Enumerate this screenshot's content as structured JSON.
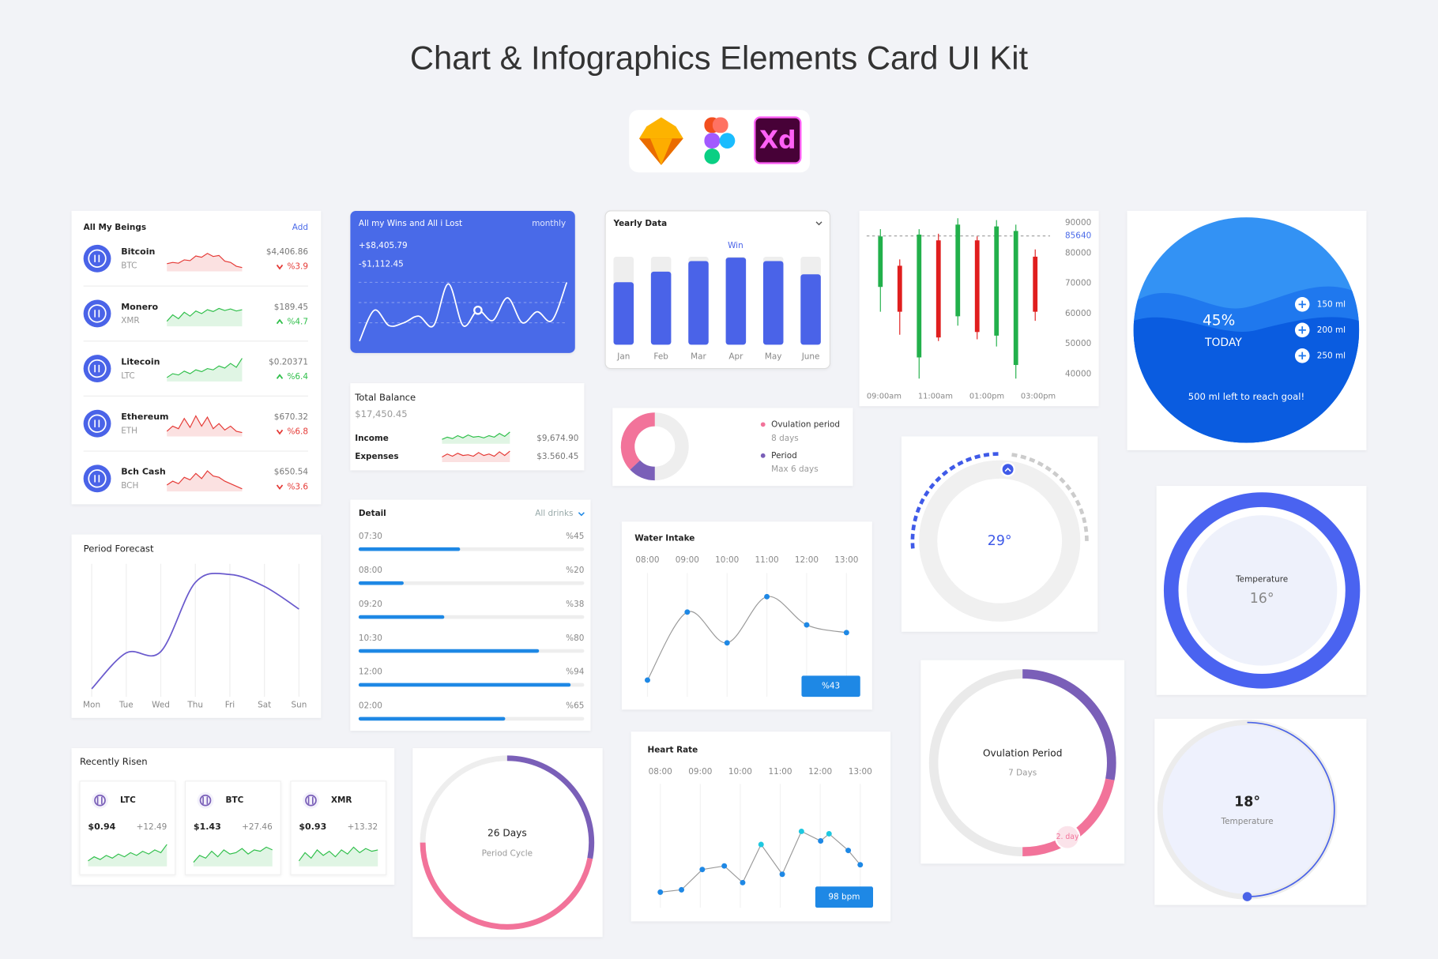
{
  "header": {
    "title": "Chart & Infographics Elements Card UI Kit",
    "xd_icon": "Xd"
  },
  "beings": {
    "title": "All My Beings",
    "action": "Add",
    "up_color": "#2fbf4a",
    "down_color": "#e53935",
    "items": [
      {
        "name": "Bitcoin",
        "ticker": "BTC",
        "price": "$4,406.86",
        "change": "%3.9",
        "trend": "down",
        "spark": [
          30,
          35,
          32,
          45,
          42,
          60,
          55,
          70,
          58,
          62,
          40,
          35,
          20,
          15
        ]
      },
      {
        "name": "Monero",
        "ticker": "XMR",
        "price": "$189.45",
        "change": "%4.7",
        "trend": "up",
        "spark": [
          20,
          45,
          30,
          55,
          40,
          60,
          50,
          65,
          58,
          70,
          62,
          68,
          60,
          65
        ]
      },
      {
        "name": "Litecoin",
        "ticker": "LTC",
        "price": "$0.20371",
        "change": "%6.4",
        "trend": "up",
        "spark": [
          15,
          30,
          25,
          40,
          30,
          45,
          38,
          50,
          45,
          60,
          52,
          70,
          55,
          90
        ]
      },
      {
        "name": "Ethereum",
        "ticker": "ETH",
        "price": "$670.32",
        "change": "%6.8",
        "trend": "down",
        "spark": [
          20,
          40,
          30,
          70,
          35,
          80,
          40,
          75,
          30,
          50,
          25,
          40,
          20,
          15
        ]
      },
      {
        "name": "Bch Cash",
        "ticker": "BCH",
        "price": "$650.54",
        "change": "%3.6",
        "trend": "down",
        "spark": [
          25,
          40,
          30,
          55,
          45,
          70,
          50,
          80,
          60,
          55,
          40,
          30,
          20,
          10
        ]
      }
    ]
  },
  "wins": {
    "title": "All my Wins and All i Lost",
    "period": "monthly",
    "gain": "+$8,405.79",
    "loss": "-$1,112.45",
    "ylim": [
      0,
      100
    ],
    "values": [
      10,
      52,
      31,
      35,
      44,
      31,
      88,
      31,
      52,
      38,
      69,
      35,
      50,
      38,
      90
    ],
    "marker": 8,
    "color": "#ffffff"
  },
  "balance": {
    "title": "Total Balance",
    "total": "$17,450.45",
    "rows": [
      {
        "label": "Income",
        "value": "$9,674.90",
        "color": "#2fbf4a",
        "spark": [
          30,
          45,
          35,
          55,
          40,
          60,
          45,
          50,
          40,
          55,
          45,
          70,
          50,
          80
        ]
      },
      {
        "label": "Expenses",
        "value": "$3.560.45",
        "color": "#e53935",
        "spark": [
          35,
          55,
          40,
          60,
          45,
          50,
          40,
          65,
          45,
          55,
          40,
          70,
          45,
          75
        ]
      }
    ]
  },
  "detail": {
    "title": "Detail",
    "filter": "All drinks",
    "times": [
      "07:30",
      "08:00",
      "09:20",
      "10:30",
      "12:00",
      "02:00"
    ],
    "values": [
      45,
      20,
      38,
      80,
      94,
      65
    ],
    "value_labels": [
      "%45",
      "%20",
      "%38",
      "%80",
      "%94",
      "%65"
    ],
    "xlim": [
      0,
      100
    ],
    "color": "#1e88e5"
  },
  "yearly": {
    "title": "Yearly Data",
    "annotation": "Win",
    "categories": [
      "Jan",
      "Feb",
      "Mar",
      "Apr",
      "May",
      "June"
    ],
    "values": [
      71,
      83,
      95,
      99,
      95,
      80
    ],
    "ylim": [
      0,
      100
    ],
    "color": "#4a63e8"
  },
  "cycle_donut": {
    "total": 100,
    "track_color": "#eeeeee",
    "segments": [
      {
        "name": "Ovulation period",
        "note": "8 days",
        "value": 37,
        "color": "#f2739a"
      },
      {
        "name": "Period",
        "note": "Max 6 days",
        "value": 13,
        "color": "#7a5fb8"
      }
    ]
  },
  "candles": {
    "ylim": [
      35000,
      95000
    ],
    "yticks": [
      40000,
      50000,
      60000,
      70000,
      80000,
      90000
    ],
    "current": 85640,
    "xticks": [
      "09:00am",
      "11:00am",
      "01:00pm",
      "03:00pm"
    ],
    "up_color": "#22b04b",
    "down_color": "#e01e1e",
    "items": [
      {
        "open": 68800,
        "high": 87900,
        "low": 60600,
        "close": 85500
      },
      {
        "open": 75800,
        "high": 77900,
        "low": 53000,
        "close": 60600
      },
      {
        "open": 45500,
        "high": 87900,
        "low": 38500,
        "close": 86100
      },
      {
        "open": 84200,
        "high": 86400,
        "low": 50900,
        "close": 52100
      },
      {
        "open": 59100,
        "high": 91500,
        "low": 56000,
        "close": 89400
      },
      {
        "open": 84200,
        "high": 85500,
        "low": 51500,
        "close": 53900
      },
      {
        "open": 52700,
        "high": 90900,
        "low": 49100,
        "close": 88800
      },
      {
        "open": 43000,
        "high": 89400,
        "low": 38500,
        "close": 87300
      },
      {
        "open": 78800,
        "high": 81200,
        "low": 57600,
        "close": 60600
      }
    ]
  },
  "hydration": {
    "percent": "45%",
    "label": "TODAY",
    "options": [
      "150 ml",
      "200 ml",
      "250 ml"
    ],
    "goal": "500 ml left to reach goal!"
  },
  "gauge": {
    "value": "29°"
  },
  "temperature": {
    "label": "Temperature",
    "value": "16°"
  },
  "forecast": {
    "title": "Period Forecast",
    "categories": [
      "Mon",
      "Tue",
      "Wed",
      "Thu",
      "Fri",
      "Sat",
      "Sun"
    ],
    "values": [
      6,
      33,
      34,
      86,
      92,
      83,
      66
    ],
    "ylim": [
      0,
      100
    ],
    "color": "#6a5acd"
  },
  "water": {
    "title": "Water Intake",
    "categories": [
      "08:00",
      "09:00",
      "10:00",
      "11:00",
      "12:00",
      "13:00"
    ],
    "values": [
      13,
      66,
      42,
      78,
      56,
      50
    ],
    "ylim": [
      0,
      100
    ],
    "badge": "%43",
    "color": "#1e88e5"
  },
  "heart": {
    "title": "Heart Rate",
    "x": [
      8,
      8.53,
      9.05,
      9.6,
      10.06,
      10.52,
      11.05,
      11.53,
      12.01,
      12.22,
      12.7,
      13
    ],
    "values": [
      13,
      15,
      32,
      35,
      21,
      53,
      28,
      64,
      56,
      62,
      48,
      36
    ],
    "xlim": [
      8,
      13
    ],
    "xticks": [
      {
        "value": 8,
        "label": "08:00"
      },
      {
        "value": 9,
        "label": "09:00"
      },
      {
        "value": 10,
        "label": "10:00"
      },
      {
        "value": 11,
        "label": "11:00"
      },
      {
        "value": 12,
        "label": "12:00"
      },
      {
        "value": 13,
        "label": "13:00"
      }
    ],
    "ylim": [
      0,
      100
    ],
    "highlight": [
      5,
      7,
      9
    ],
    "color": "#1e88e5",
    "highlight_color": "#1ec8e0",
    "badge": "98 bpm"
  },
  "risen": {
    "title": "Recently Risen",
    "color": "#2fbf4a",
    "items": [
      {
        "ticker": "LTC",
        "price": "$0.94",
        "change": "+12.49",
        "spark": [
          20,
          35,
          25,
          40,
          30,
          45,
          35,
          50,
          40,
          55,
          45,
          60,
          50,
          80
        ]
      },
      {
        "ticker": "BTC",
        "price": "$1.43",
        "change": "+27.46",
        "spark": [
          15,
          40,
          30,
          55,
          35,
          60,
          45,
          50,
          65,
          45,
          60,
          55,
          70,
          60
        ]
      },
      {
        "ticker": "XMR",
        "price": "$0.93",
        "change": "+13.32",
        "spark": [
          20,
          50,
          30,
          60,
          40,
          55,
          35,
          60,
          45,
          70,
          50,
          65,
          55,
          60
        ]
      }
    ]
  },
  "period_cycle": {
    "title": "26 Days",
    "subtitle": "Period Cycle",
    "total": 100,
    "track_color": "#eeeeee",
    "segments": [
      {
        "value": 28,
        "color": "#7a5fb8"
      },
      {
        "value": 47,
        "color": "#f2739a"
      }
    ]
  },
  "ovulation": {
    "title": "Ovulation Period",
    "subtitle": "7 Days",
    "badge": "2. day",
    "total": 100,
    "track_color": "#eaeaea",
    "segments": [
      {
        "value": 28,
        "color": "#7a5fb8"
      },
      {
        "value": 22,
        "color": "#f2739a"
      }
    ]
  },
  "temperature2": {
    "value": "18°",
    "label": "Temperature",
    "progress": 50,
    "total": 100,
    "color": "#4a63e8"
  }
}
